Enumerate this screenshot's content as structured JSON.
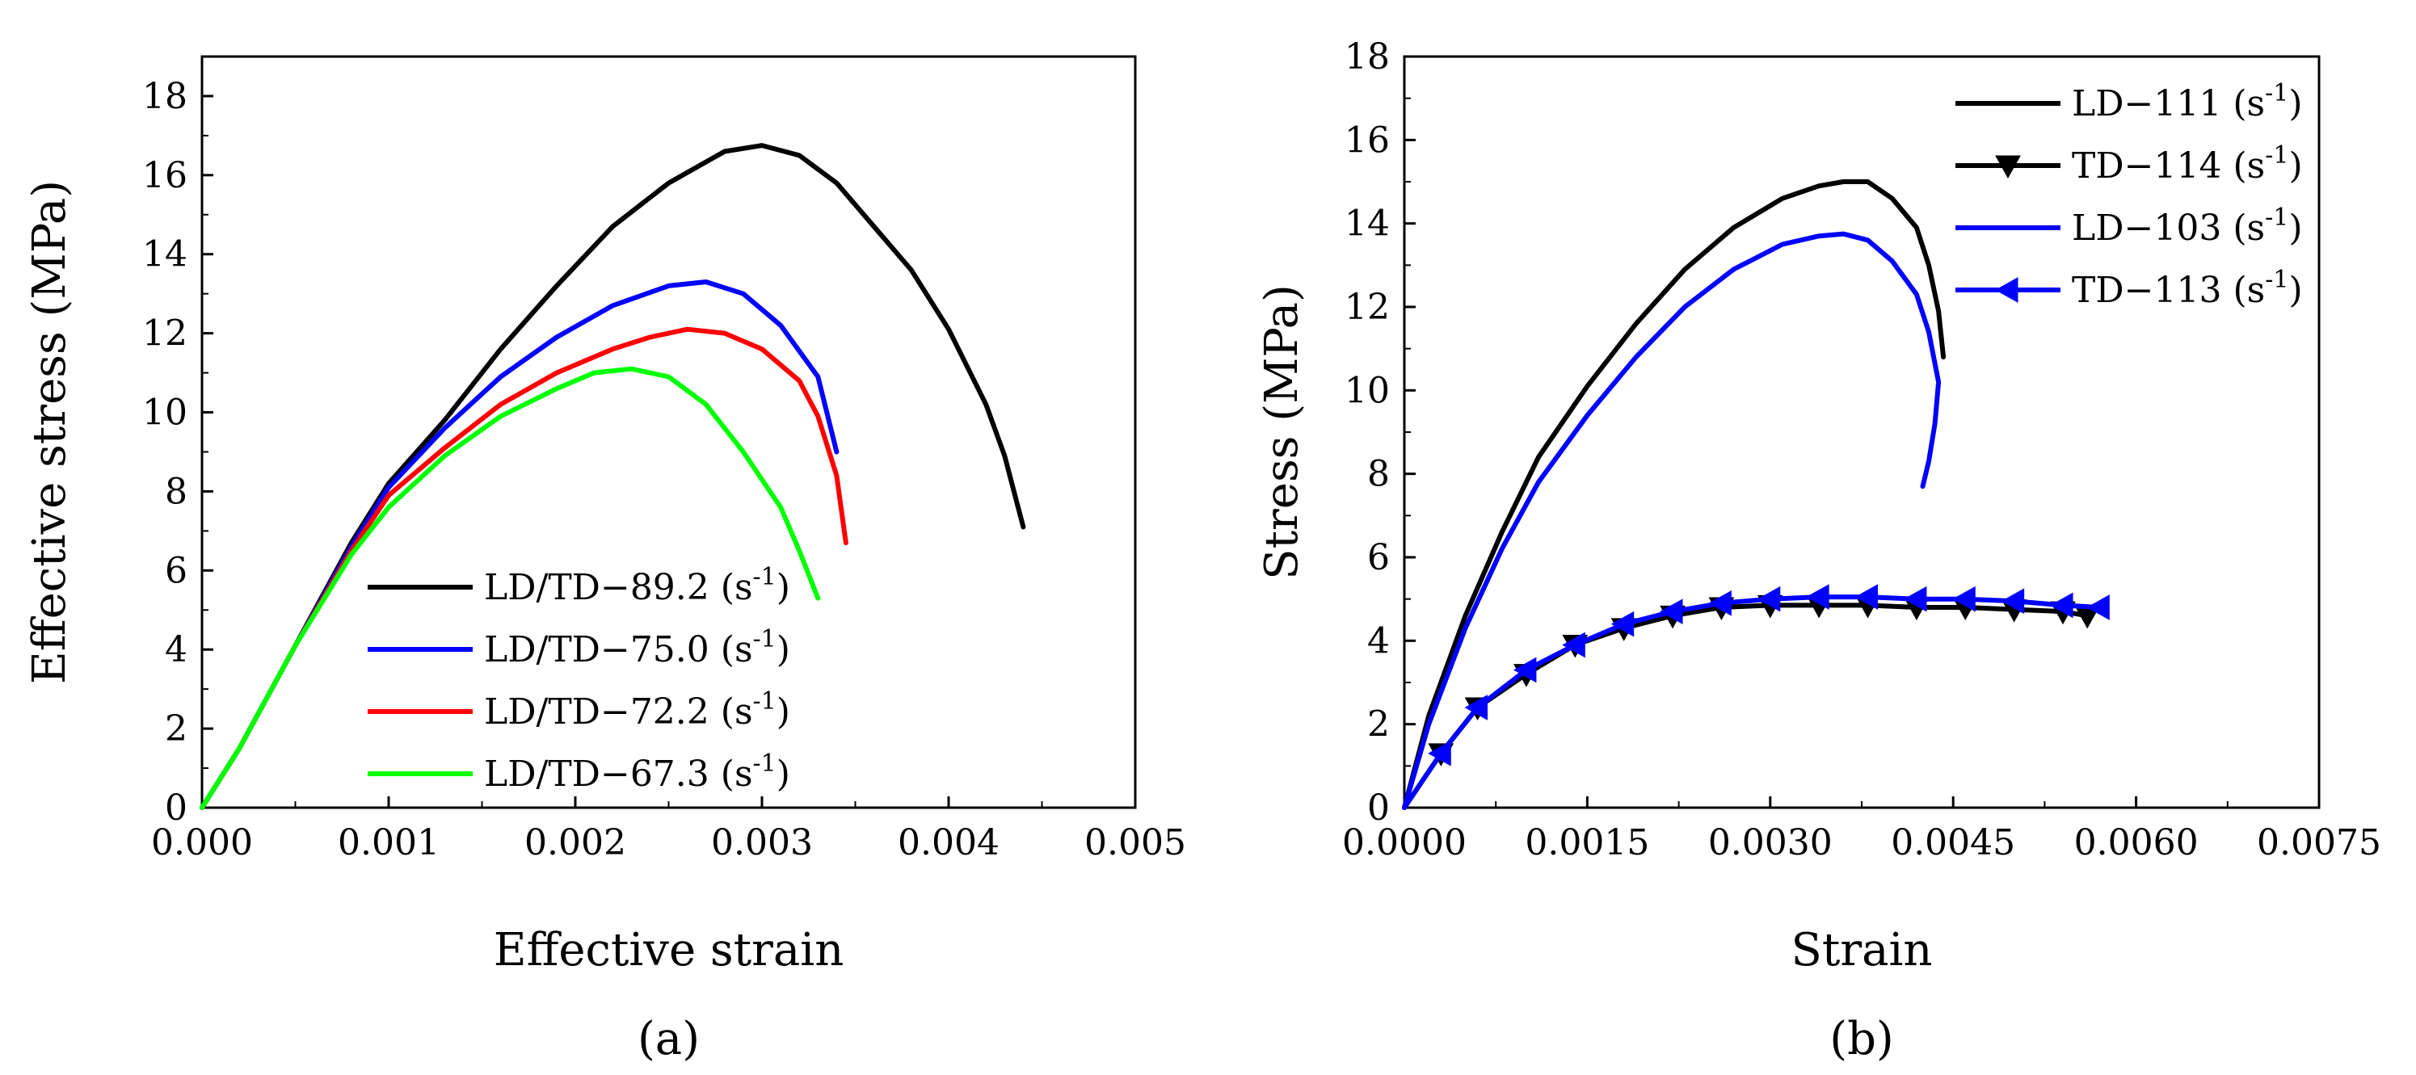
{
  "chart_data": [
    {
      "type": "line",
      "panel_label": "(a)",
      "xlabel": "Effective strain",
      "ylabel": "Effective stress (MPa)",
      "xlim": [
        0,
        0.005
      ],
      "ylim": [
        0,
        19
      ],
      "xticks": [
        0,
        0.001,
        0.002,
        0.003,
        0.004,
        0.005
      ],
      "xtick_labels": [
        "0.000",
        "0.001",
        "0.002",
        "0.003",
        "0.004",
        "0.005"
      ],
      "yticks": [
        0,
        2,
        4,
        6,
        8,
        10,
        12,
        14,
        16,
        18
      ],
      "ytick_labels": [
        "0",
        "2",
        "4",
        "6",
        "8",
        "10",
        "12",
        "14",
        "16",
        "18"
      ],
      "legend_position": "bottom-center",
      "series": [
        {
          "name": "LD/TD−89.2",
          "unit": "(s",
          "exp": "-1",
          "close": ")",
          "color": "#000000",
          "x": [
            0,
            0.0002,
            0.0005,
            0.0008,
            0.001,
            0.0013,
            0.0016,
            0.0019,
            0.0022,
            0.0025,
            0.0028,
            0.003,
            0.0032,
            0.0034,
            0.0036,
            0.0038,
            0.004,
            0.0042,
            0.0043,
            0.0044
          ],
          "y": [
            0,
            1.5,
            4.1,
            6.7,
            8.2,
            9.8,
            11.6,
            13.2,
            14.7,
            15.8,
            16.6,
            16.75,
            16.5,
            15.8,
            14.7,
            13.6,
            12.1,
            10.2,
            8.9,
            7.1
          ]
        },
        {
          "name": "LD/TD−75.0",
          "unit": "(s",
          "exp": "-1",
          "close": ")",
          "color": "#0000ff",
          "x": [
            0,
            0.0002,
            0.0005,
            0.0008,
            0.001,
            0.0013,
            0.0016,
            0.0019,
            0.0022,
            0.0025,
            0.0027,
            0.0029,
            0.0031,
            0.0033,
            0.0034
          ],
          "y": [
            0,
            1.5,
            4.1,
            6.6,
            8.1,
            9.6,
            10.9,
            11.9,
            12.7,
            13.2,
            13.3,
            13.0,
            12.2,
            10.9,
            9.0
          ]
        },
        {
          "name": "LD/TD−72.2",
          "unit": "(s",
          "exp": "-1",
          "close": ")",
          "color": "#ff0000",
          "x": [
            0,
            0.0002,
            0.0005,
            0.0008,
            0.001,
            0.0013,
            0.0016,
            0.0019,
            0.0022,
            0.0024,
            0.0026,
            0.0028,
            0.003,
            0.0032,
            0.0033,
            0.0034,
            0.00345
          ],
          "y": [
            0,
            1.5,
            4.1,
            6.5,
            7.9,
            9.1,
            10.2,
            11.0,
            11.6,
            11.9,
            12.1,
            12.0,
            11.6,
            10.8,
            9.9,
            8.4,
            6.7
          ]
        },
        {
          "name": "LD/TD−67.3",
          "unit": "(s",
          "exp": "-1",
          "close": ")",
          "color": "#00ff00",
          "x": [
            0,
            0.0002,
            0.0005,
            0.0008,
            0.001,
            0.0013,
            0.0016,
            0.0019,
            0.0021,
            0.0023,
            0.0025,
            0.0027,
            0.0029,
            0.0031,
            0.0032,
            0.0033
          ],
          "y": [
            0,
            1.5,
            4.1,
            6.4,
            7.6,
            8.9,
            9.9,
            10.6,
            11.0,
            11.1,
            10.9,
            10.2,
            9.0,
            7.6,
            6.5,
            5.3
          ]
        }
      ]
    },
    {
      "type": "line",
      "panel_label": "(b)",
      "xlabel": "Strain",
      "ylabel": "Stress (MPa)",
      "xlim": [
        0,
        0.0075
      ],
      "ylim": [
        0,
        18
      ],
      "xticks": [
        0,
        0.0015,
        0.003,
        0.0045,
        0.006,
        0.0075
      ],
      "xtick_labels": [
        "0.0000",
        "0.0015",
        "0.0030",
        "0.0045",
        "0.0060",
        "0.0075"
      ],
      "yticks": [
        0,
        2,
        4,
        6,
        8,
        10,
        12,
        14,
        16,
        18
      ],
      "ytick_labels": [
        "0",
        "2",
        "4",
        "6",
        "8",
        "10",
        "12",
        "14",
        "16",
        "18"
      ],
      "legend_position": "top-right",
      "series": [
        {
          "name": "LD−111",
          "unit": "(s",
          "exp": "-1",
          "close": ")",
          "color": "#000000",
          "marker": "none",
          "x": [
            0,
            0.0002,
            0.0005,
            0.0008,
            0.0011,
            0.0015,
            0.0019,
            0.0023,
            0.0027,
            0.0031,
            0.0034,
            0.0036,
            0.0038,
            0.004,
            0.0042,
            0.0043,
            0.00438,
            0.00442
          ],
          "y": [
            0,
            2.2,
            4.6,
            6.6,
            8.4,
            10.1,
            11.6,
            12.9,
            13.9,
            14.6,
            14.9,
            15.0,
            15.0,
            14.6,
            13.9,
            13.0,
            11.9,
            10.8
          ]
        },
        {
          "name": "TD−114",
          "unit": "(s",
          "exp": "-1",
          "close": ")",
          "color": "#000000",
          "marker": "triangle-down",
          "x": [
            0,
            0.0003,
            0.0006,
            0.001,
            0.0014,
            0.0018,
            0.0022,
            0.0026,
            0.003,
            0.0034,
            0.0038,
            0.0042,
            0.0046,
            0.005,
            0.0054,
            0.0056
          ],
          "y": [
            0,
            1.3,
            2.4,
            3.2,
            3.9,
            4.3,
            4.6,
            4.8,
            4.85,
            4.85,
            4.85,
            4.8,
            4.8,
            4.75,
            4.7,
            4.6
          ]
        },
        {
          "name": "LD−103",
          "unit": "(s",
          "exp": "-1",
          "close": ")",
          "color": "#0000ff",
          "marker": "none",
          "x": [
            0,
            0.0002,
            0.0005,
            0.0008,
            0.0011,
            0.0015,
            0.0019,
            0.0023,
            0.0027,
            0.0031,
            0.0034,
            0.0036,
            0.0038,
            0.004,
            0.0042,
            0.0043,
            0.00438,
            0.00435,
            0.0043,
            0.00425
          ],
          "y": [
            0,
            2.0,
            4.3,
            6.2,
            7.8,
            9.4,
            10.8,
            12.0,
            12.9,
            13.5,
            13.7,
            13.75,
            13.6,
            13.1,
            12.3,
            11.4,
            10.2,
            9.2,
            8.3,
            7.7
          ]
        },
        {
          "name": "TD−113",
          "unit": "(s",
          "exp": "-1",
          "close": ")",
          "color": "#0000ff",
          "marker": "triangle-left",
          "x": [
            0,
            0.0003,
            0.0006,
            0.001,
            0.0014,
            0.0018,
            0.0022,
            0.0026,
            0.003,
            0.0034,
            0.0038,
            0.0042,
            0.0046,
            0.005,
            0.0054,
            0.0057
          ],
          "y": [
            0,
            1.3,
            2.4,
            3.3,
            3.9,
            4.4,
            4.7,
            4.9,
            5.0,
            5.05,
            5.05,
            5.0,
            5.0,
            4.95,
            4.85,
            4.8
          ]
        }
      ]
    }
  ]
}
